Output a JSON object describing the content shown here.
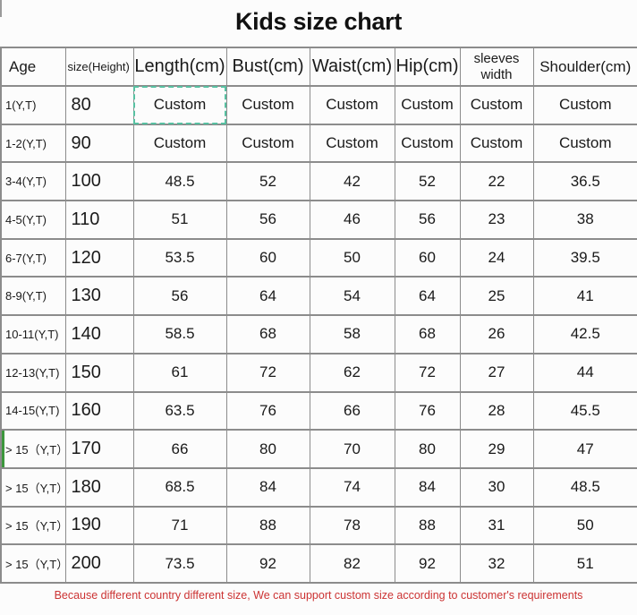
{
  "title": "Kids size chart",
  "chart_data": {
    "type": "table",
    "title": "Kids size chart",
    "columns": [
      "Age",
      "size(Height)",
      "Length(cm)",
      "Bust(cm)",
      "Waist(cm)",
      "Hip(cm)",
      "sleeves width",
      "Shoulder(cm)"
    ],
    "rows": [
      [
        "1(Y,T)",
        "80",
        "Custom",
        "Custom",
        "Custom",
        "Custom",
        "Custom",
        "Custom"
      ],
      [
        "1-2(Y,T)",
        "90",
        "Custom",
        "Custom",
        "Custom",
        "Custom",
        "Custom",
        "Custom"
      ],
      [
        "3-4(Y,T)",
        "100",
        "48.5",
        "52",
        "42",
        "52",
        "22",
        "36.5"
      ],
      [
        "4-5(Y,T)",
        "110",
        "51",
        "56",
        "46",
        "56",
        "23",
        "38"
      ],
      [
        "6-7(Y,T)",
        "120",
        "53.5",
        "60",
        "50",
        "60",
        "24",
        "39.5"
      ],
      [
        "8-9(Y,T)",
        "130",
        "56",
        "64",
        "54",
        "64",
        "25",
        "41"
      ],
      [
        "10-11(Y,T)",
        "140",
        "58.5",
        "68",
        "58",
        "68",
        "26",
        "42.5"
      ],
      [
        "12-13(Y,T)",
        "150",
        "61",
        "72",
        "62",
        "72",
        "27",
        "44"
      ],
      [
        "14-15(Y,T)",
        "160",
        "63.5",
        "76",
        "66",
        "76",
        "28",
        "45.5"
      ],
      [
        "> 15（Y,T）",
        "170",
        "66",
        "80",
        "70",
        "80",
        "29",
        "47"
      ],
      [
        "> 15（Y,T）",
        "180",
        "68.5",
        "84",
        "74",
        "84",
        "30",
        "48.5"
      ],
      [
        "> 15（Y,T）",
        "190",
        "71",
        "88",
        "78",
        "88",
        "31",
        "50"
      ],
      [
        "> 15（Y,T）",
        "200",
        "73.5",
        "92",
        "82",
        "92",
        "32",
        "51"
      ]
    ]
  },
  "selection": {
    "row_index": 0,
    "column_index": 2
  },
  "row_marker": {
    "row_index": 9,
    "edge": "left"
  },
  "footer_note": "Because different country different size, We can support custom size according to customer's requirements",
  "colors": {
    "selection_dash": "#57c0a1",
    "row_marker_green": "#3c963c",
    "footer_red": "#cc3333",
    "border_gray": "#8c8c8c"
  }
}
